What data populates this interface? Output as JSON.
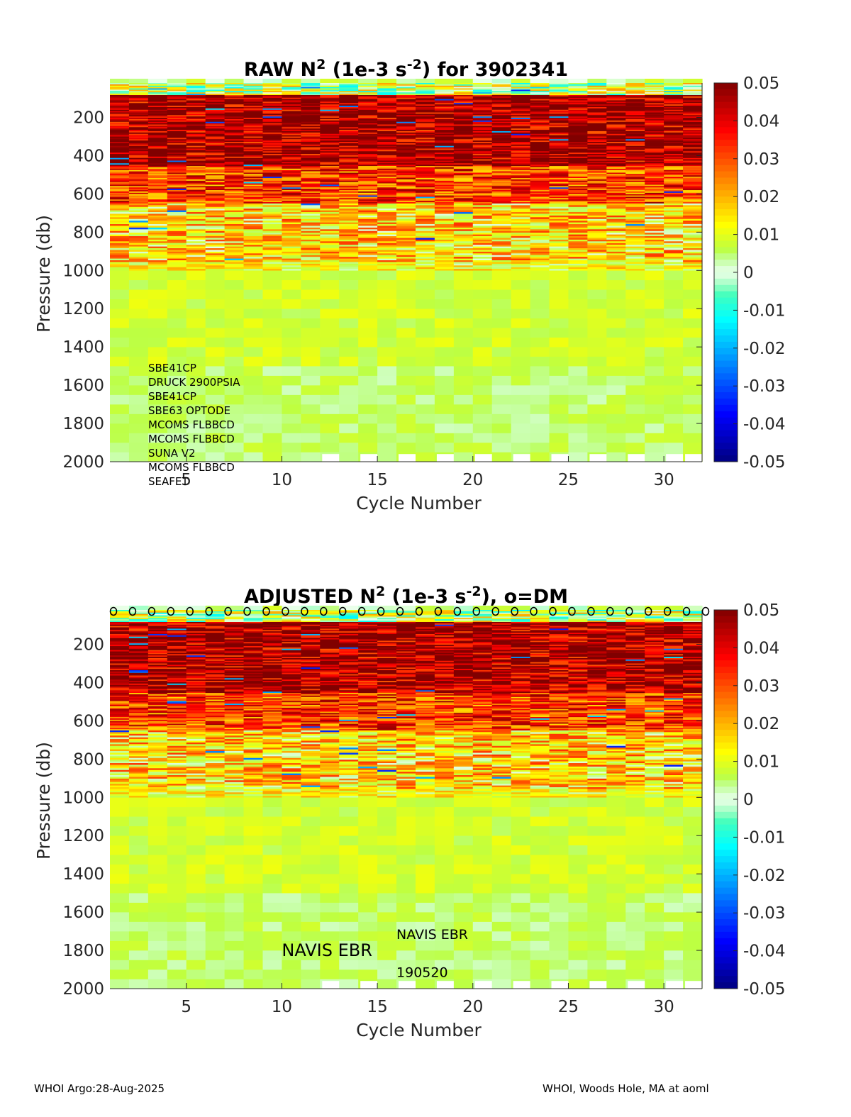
{
  "chart_data": [
    {
      "type": "heatmap",
      "title_pre": "RAW N",
      "title_sup1": "2",
      "title_mid": " (1e-3 s",
      "title_sup2": "-2",
      "title_post": ") for 3902341",
      "xlabel": "Cycle Number",
      "ylabel": "Pressure (db)",
      "xlim": [
        1,
        32
      ],
      "ylim": [
        2000,
        20
      ],
      "y_reversed": true,
      "xticks": [
        5,
        10,
        15,
        20,
        25,
        30
      ],
      "yticks": [
        200,
        400,
        600,
        800,
        1000,
        1200,
        1400,
        1600,
        1800,
        2000
      ],
      "colorbar": {
        "colormap": "jet-with-white-center",
        "clim": [
          -0.05,
          0.05
        ],
        "ticks": [
          "0.05",
          "0.04",
          "0.03",
          "0.02",
          "0.01",
          "0",
          "-0.01",
          "-0.02",
          "-0.03",
          "-0.04",
          "-0.05"
        ]
      },
      "cycles": [
        1,
        2,
        3,
        4,
        5,
        6,
        7,
        8,
        9,
        10,
        11,
        12,
        13,
        14,
        15,
        16,
        17,
        18,
        19,
        20,
        21,
        22,
        23,
        24,
        25,
        26,
        27,
        28,
        29,
        30,
        31
      ],
      "profile_bands": [
        {
          "p_top": 20,
          "p_bottom": 80,
          "n2_typical": 0.003
        },
        {
          "p_top": 80,
          "p_bottom": 450,
          "n2_typical": 0.045
        },
        {
          "p_top": 450,
          "p_bottom": 650,
          "n2_typical": 0.03
        },
        {
          "p_top": 650,
          "p_bottom": 1000,
          "n2_typical": 0.015
        },
        {
          "p_top": 1000,
          "p_bottom": 1500,
          "n2_typical": 0.008
        },
        {
          "p_top": 1500,
          "p_bottom": 2000,
          "n2_typical": 0.005
        }
      ],
      "sensors": [
        "SBE41CP",
        "DRUCK 2900PSIA",
        "SBE41CP",
        "SBE63 OPTODE",
        "MCOMS FLBBCD",
        "MCOMS FLBBCD",
        "SUNA V2",
        "MCOMS FLBBCD",
        "SEAFET"
      ]
    },
    {
      "type": "heatmap",
      "title_pre": "ADJUSTED N",
      "title_sup1": "2",
      "title_mid": " (1e-3 s",
      "title_sup2": "-2",
      "title_post": "), o=DM",
      "xlabel": "Cycle Number",
      "ylabel": "Pressure (db)",
      "xlim": [
        1,
        32
      ],
      "ylim": [
        2000,
        20
      ],
      "y_reversed": true,
      "xticks": [
        5,
        10,
        15,
        20,
        25,
        30
      ],
      "yticks": [
        200,
        400,
        600,
        800,
        1000,
        1200,
        1400,
        1600,
        1800,
        2000
      ],
      "colorbar": {
        "colormap": "jet-with-white-center",
        "clim": [
          -0.05,
          0.05
        ],
        "ticks": [
          "0.05",
          "0.04",
          "0.03",
          "0.02",
          "0.01",
          "0",
          "-0.01",
          "-0.02",
          "-0.03",
          "-0.04",
          "-0.05"
        ]
      },
      "dm_marker": "o",
      "dm_cycles": [
        1,
        2,
        3,
        4,
        5,
        6,
        7,
        8,
        9,
        10,
        11,
        12,
        13,
        14,
        15,
        16,
        17,
        18,
        19,
        20,
        21,
        22,
        23,
        24,
        25,
        26,
        27,
        28,
        29,
        30,
        31,
        32
      ],
      "annotations": [
        {
          "text": "NAVIS EBR",
          "x": 10,
          "p": 1800,
          "size": "large"
        },
        {
          "text": "NAVIS EBR",
          "x": 16,
          "p": 1710,
          "size": "small"
        },
        {
          "text": "190520",
          "x": 16,
          "p": 1910,
          "size": "small"
        }
      ]
    }
  ],
  "footer": {
    "left": "WHOI Argo:28-Aug-2025",
    "right": "WHOI, Woods Hole, MA at aoml"
  }
}
